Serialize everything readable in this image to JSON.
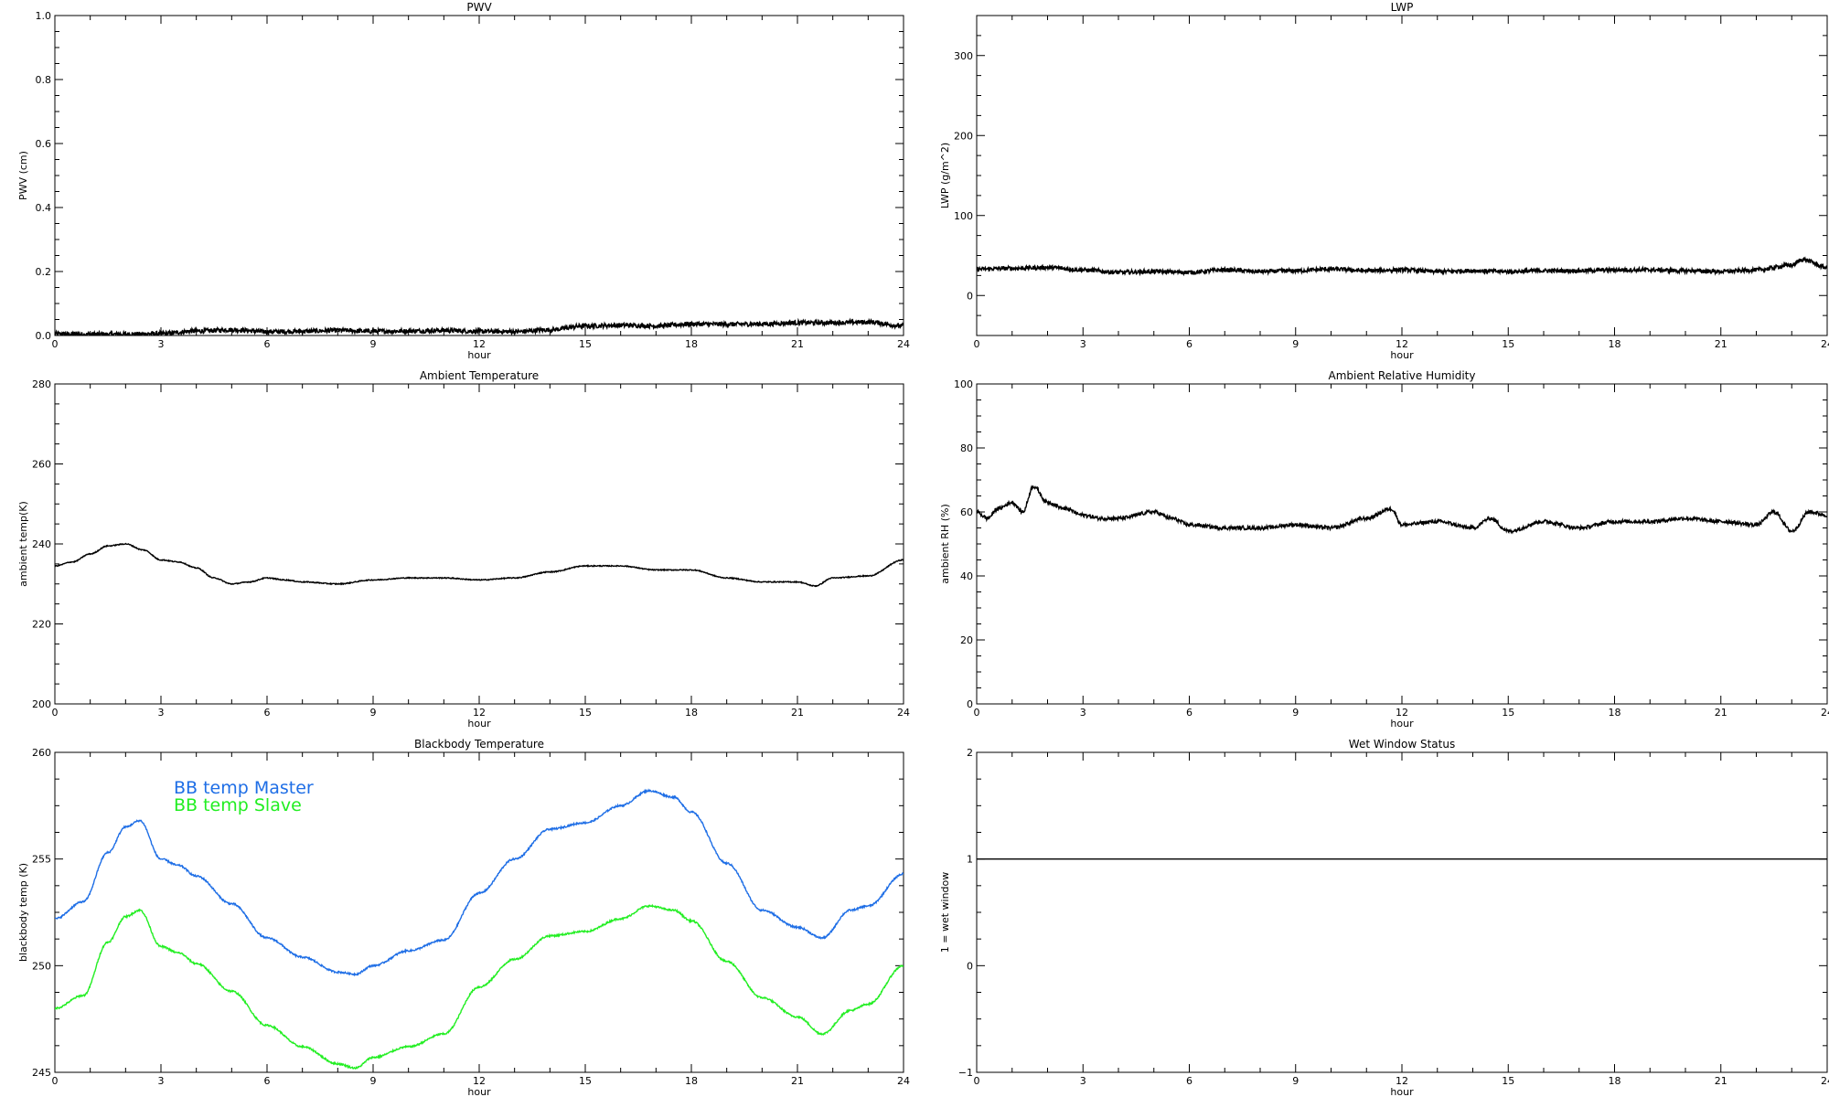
{
  "chart_data": [
    {
      "id": "pwv",
      "type": "line",
      "title": "PWV",
      "xlabel": "hour",
      "ylabel": "PWV (cm)",
      "xlim": [
        0,
        24
      ],
      "ylim": [
        0,
        1.0
      ],
      "xticks": [
        0,
        3,
        6,
        9,
        12,
        15,
        18,
        21,
        24
      ],
      "yticks": [
        0.0,
        0.2,
        0.4,
        0.6,
        0.8,
        1.0
      ],
      "ytick_labels": [
        "0.0",
        "0.2",
        "0.4",
        "0.6",
        "0.8",
        "1.0"
      ],
      "series": [
        {
          "name": "",
          "color": "#000000",
          "noise": 0.007,
          "x": [
            0,
            1,
            2,
            3,
            4,
            5,
            6,
            7,
            8,
            9,
            10,
            11,
            12,
            13,
            14,
            15,
            16,
            17,
            18,
            19,
            20,
            21,
            22,
            23,
            24
          ],
          "y": [
            0.005,
            0.004,
            0.004,
            0.006,
            0.014,
            0.018,
            0.012,
            0.013,
            0.016,
            0.013,
            0.014,
            0.016,
            0.013,
            0.012,
            0.018,
            0.03,
            0.032,
            0.03,
            0.036,
            0.035,
            0.036,
            0.04,
            0.04,
            0.042,
            0.03
          ]
        }
      ]
    },
    {
      "id": "lwp",
      "type": "line",
      "title": "LWP",
      "xlabel": "hour",
      "ylabel": "LWP (g/m^2)",
      "xlim": [
        0,
        24
      ],
      "ylim": [
        -50,
        350
      ],
      "xticks": [
        0,
        3,
        6,
        9,
        12,
        15,
        18,
        21,
        24
      ],
      "yticks": [
        0,
        100,
        200,
        300
      ],
      "ytick_labels": [
        "0",
        "100",
        "200",
        "300"
      ],
      "series": [
        {
          "name": "",
          "color": "#000000",
          "noise": 2.5,
          "x": [
            0,
            1,
            2,
            3,
            4,
            5,
            6,
            7,
            8,
            9,
            10,
            11,
            12,
            13,
            14,
            15,
            16,
            17,
            18,
            19,
            20,
            21,
            22,
            23,
            23.3,
            24
          ],
          "y": [
            33,
            34,
            35,
            32,
            29,
            30,
            29,
            32,
            30,
            31,
            33,
            31,
            32,
            30,
            31,
            30,
            31,
            31,
            32,
            32,
            31,
            30,
            32,
            38,
            45,
            35
          ]
        }
      ]
    },
    {
      "id": "ambient-temperature",
      "type": "line",
      "title": "Ambient Temperature",
      "xlabel": "hour",
      "ylabel": "ambient temp(K)",
      "xlim": [
        0,
        24
      ],
      "ylim": [
        200,
        280
      ],
      "xticks": [
        0,
        3,
        6,
        9,
        12,
        15,
        18,
        21,
        24
      ],
      "yticks": [
        200,
        220,
        240,
        260,
        280
      ],
      "ytick_labels": [
        "200",
        "220",
        "240",
        "260",
        "280"
      ],
      "series": [
        {
          "name": "",
          "color": "#000000",
          "noise": 0.12,
          "x": [
            0,
            0.5,
            1,
            1.5,
            2,
            2.5,
            3,
            3.5,
            4,
            4.5,
            5,
            5.5,
            6,
            6.5,
            7,
            8,
            9,
            10,
            11,
            12,
            13,
            14,
            15,
            16,
            17,
            18,
            19,
            20,
            21,
            21.5,
            22,
            23,
            24
          ],
          "y": [
            234.5,
            235.5,
            237.5,
            239.5,
            240,
            238.5,
            236,
            235.5,
            234,
            231.5,
            230,
            230.5,
            231.5,
            231,
            230.5,
            230,
            231,
            231.5,
            231.5,
            231,
            231.5,
            233,
            234.5,
            234.5,
            233.5,
            233.5,
            231.5,
            230.5,
            230.5,
            229.5,
            231.5,
            232,
            236
          ]
        }
      ]
    },
    {
      "id": "ambient-relative-humidity",
      "type": "line",
      "title": "Ambient Relative Humidity",
      "xlabel": "hour",
      "ylabel": "ambient RH (%)",
      "xlim": [
        0,
        24
      ],
      "ylim": [
        0,
        100
      ],
      "xticks": [
        0,
        3,
        6,
        9,
        12,
        15,
        18,
        21,
        24
      ],
      "yticks": [
        0,
        20,
        40,
        60,
        80,
        100
      ],
      "ytick_labels": [
        "0",
        "20",
        "40",
        "60",
        "80",
        "100"
      ],
      "series": [
        {
          "name": "",
          "color": "#000000",
          "noise": 0.6,
          "x": [
            0,
            0.3,
            0.6,
            1,
            1.3,
            1.6,
            2,
            2.5,
            3,
            3.5,
            4,
            5,
            5.5,
            6,
            7,
            8,
            9,
            10,
            11,
            11.7,
            12,
            13,
            14,
            14.5,
            15,
            16,
            17,
            18,
            19,
            20,
            21,
            22,
            22.5,
            23,
            23.5,
            24
          ],
          "y": [
            60,
            58,
            61,
            63,
            60,
            68,
            63,
            61,
            59,
            58,
            58,
            60,
            58,
            56,
            55,
            55,
            56,
            55,
            58,
            61,
            56,
            57,
            55,
            58,
            54,
            57,
            55,
            57,
            57,
            58,
            57,
            56,
            60,
            54,
            60,
            59
          ]
        }
      ]
    },
    {
      "id": "blackbody-temperature",
      "type": "line",
      "title": "Blackbody Temperature",
      "xlabel": "hour",
      "ylabel": "blackbody temp (K)",
      "xlim": [
        0,
        24
      ],
      "ylim": [
        245,
        260
      ],
      "xticks": [
        0,
        3,
        6,
        9,
        12,
        15,
        18,
        21,
        24
      ],
      "yticks": [
        245,
        250,
        255,
        260
      ],
      "ytick_labels": [
        "245",
        "250",
        "255",
        "260"
      ],
      "legend": "top-left",
      "series": [
        {
          "name": "BB temp Master",
          "color": "#1e6ee6",
          "noise": 0.04,
          "x": [
            0,
            0.8,
            1.5,
            2,
            2.4,
            3,
            3.5,
            4,
            5,
            6,
            7,
            8,
            8.5,
            9,
            10,
            11,
            12,
            13,
            14,
            15,
            16,
            16.8,
            17.5,
            18,
            19,
            20,
            21,
            21.7,
            22.5,
            23,
            24
          ],
          "y": [
            252.2,
            253,
            255.3,
            256.5,
            256.8,
            255,
            254.7,
            254.2,
            252.9,
            251.3,
            250.4,
            249.7,
            249.6,
            250,
            250.7,
            251.2,
            253.4,
            255,
            256.4,
            256.7,
            257.5,
            258.2,
            257.9,
            257.2,
            254.8,
            252.6,
            251.8,
            251.3,
            252.6,
            252.8,
            254.3
          ]
        },
        {
          "name": "BB temp Slave",
          "color": "#22ee22",
          "noise": 0.04,
          "x": [
            0,
            0.8,
            1.5,
            2,
            2.4,
            3,
            3.5,
            4,
            5,
            6,
            7,
            8,
            8.5,
            9,
            10,
            11,
            12,
            13,
            14,
            15,
            16,
            16.8,
            17.5,
            18,
            19,
            20,
            21,
            21.7,
            22.5,
            23,
            24
          ],
          "y": [
            248,
            248.6,
            251.1,
            252.3,
            252.6,
            250.9,
            250.6,
            250.1,
            248.8,
            247.2,
            246.2,
            245.4,
            245.2,
            245.7,
            246.2,
            246.8,
            249,
            250.3,
            251.4,
            251.6,
            252.2,
            252.8,
            252.6,
            252.1,
            250.2,
            248.5,
            247.6,
            246.8,
            247.9,
            248.2,
            250
          ]
        }
      ]
    },
    {
      "id": "wet-window-status",
      "type": "line",
      "title": "Wet Window Status",
      "xlabel": "hour",
      "ylabel": "1 = wet window",
      "xlim": [
        0,
        24
      ],
      "ylim": [
        -1,
        2
      ],
      "xticks": [
        0,
        3,
        6,
        9,
        12,
        15,
        18,
        21,
        24
      ],
      "yticks": [
        -1,
        0,
        1,
        2
      ],
      "ytick_labels": [
        "−1",
        "0",
        "1",
        "2"
      ],
      "series": [
        {
          "name": "",
          "color": "#000000",
          "noise": 0,
          "x": [
            0,
            24
          ],
          "y": [
            1,
            1
          ]
        }
      ]
    }
  ]
}
